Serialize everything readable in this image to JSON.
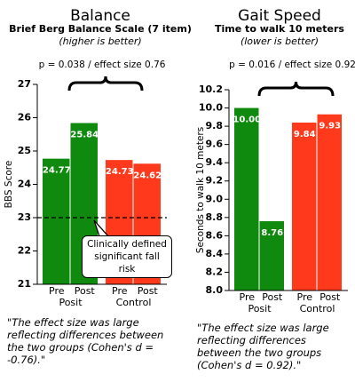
{
  "chart_data": [
    {
      "type": "bar",
      "title": "Balance",
      "subtitle": "Brief Berg Balance Scale (7 item)",
      "note": "(higher is better)",
      "annotation": "p = 0.038 / effect size 0.76",
      "ylabel": "BBS Score",
      "categories": [
        "Pre",
        "Post",
        "Pre",
        "Post"
      ],
      "groups": [
        "Posit",
        "Control"
      ],
      "values": [
        24.77,
        25.84,
        24.73,
        24.62
      ],
      "colors": [
        "#0f8a0f",
        "#0f8a0f",
        "#ff3a1c",
        "#ff3a1c"
      ],
      "ylim": [
        21,
        27
      ],
      "yticks": [
        21,
        22,
        23,
        24,
        25,
        26,
        27
      ],
      "reference_line": {
        "value": 23,
        "label": "Clinically defined significant fall risk"
      },
      "quote": "\"The effect size was large reflecting differences between the two groups (Cohen's d = -0.76).\""
    },
    {
      "type": "bar",
      "title": "Gait Speed",
      "subtitle": "Time to walk 10 meters",
      "note": "(lower is better)",
      "annotation": "p = 0.016 / effect size 0.92",
      "ylabel": "Seconds to walk 10 meters",
      "categories": [
        "Pre",
        "Post",
        "Pre",
        "Post"
      ],
      "groups": [
        "Posit",
        "Control"
      ],
      "values": [
        10,
        8.76,
        9.84,
        9.93
      ],
      "value_labels": [
        "10.00",
        "8.76",
        "9.84",
        "9.93"
      ],
      "colors": [
        "#0f8a0f",
        "#0f8a0f",
        "#ff3a1c",
        "#ff3a1c"
      ],
      "ylim": [
        8,
        10.2
      ],
      "yticks": [
        {
          "value": 8,
          "label": "8.0"
        },
        8.2,
        8.4,
        8.6,
        8.8,
        {
          "value": 9,
          "label": "9.0"
        },
        9.2,
        9.4,
        9.6,
        9.8,
        {
          "value": 10,
          "label": "10.0"
        },
        10.2
      ],
      "quote": "\"The effect size was large reflecting differences between the two groups (Cohen's d = 0.92).\""
    }
  ]
}
